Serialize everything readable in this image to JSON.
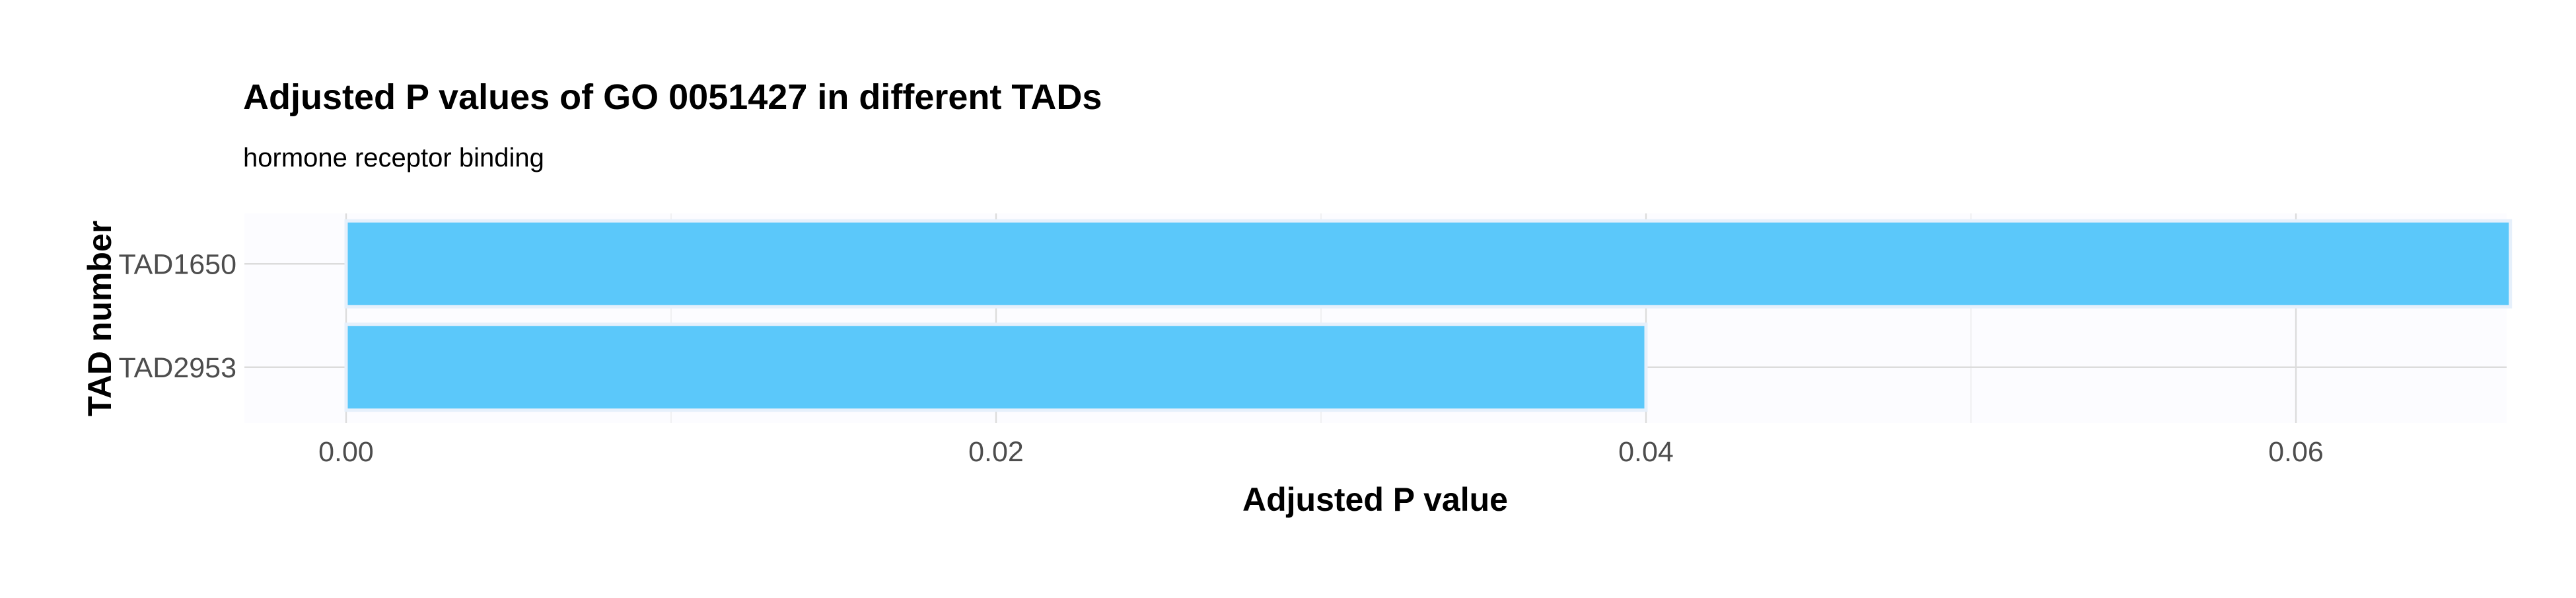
{
  "chart_data": {
    "type": "bar",
    "orientation": "horizontal",
    "title": "Adjusted P values of GO 0051427 in different TADs",
    "subtitle": "hormone receptor binding",
    "xlabel": "Adjusted P value",
    "ylabel": "TAD number",
    "categories": [
      "TAD1650",
      "TAD2953"
    ],
    "values": [
      0.0666,
      0.04
    ],
    "xlim": [
      -0.0033,
      0.0699
    ],
    "x_major_ticks": [
      0.0,
      0.02,
      0.04,
      0.06
    ],
    "x_tick_labels": [
      "0.00",
      "0.02",
      "0.04",
      "0.06"
    ],
    "x_minor_ticks": [
      0.01,
      0.03,
      0.05
    ],
    "grid": true,
    "legend": "none",
    "colors": {
      "bar_fill": "#5bc8fa",
      "bar_outline": "#e6f0fb",
      "panel_background": "#fcfcff",
      "grid_major": "#dcdcdc",
      "grid_minor": "#ececec",
      "tick_label": "#4d4d4d",
      "text": "#000000"
    }
  }
}
